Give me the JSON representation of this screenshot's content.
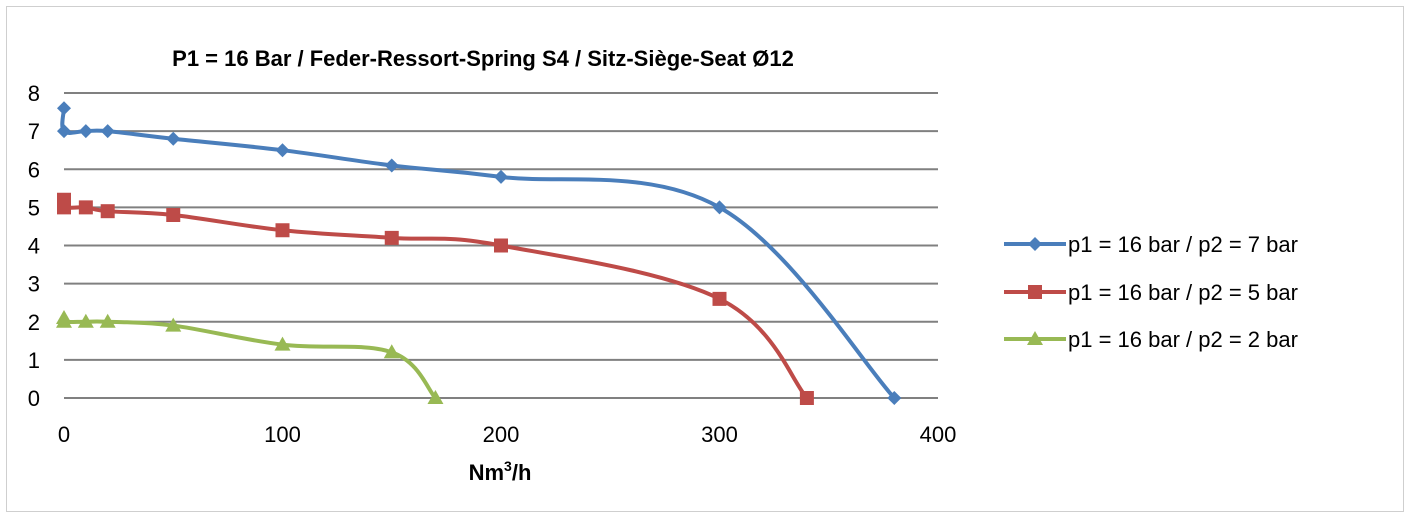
{
  "chart_data": {
    "type": "line",
    "title": "P1 = 16 Bar / Feder-Ressort-Spring S4 / Sitz-Siège-Seat Ø12",
    "xlabel_main": "Nm",
    "xlabel_sup": "3",
    "xlabel_tail": "/h",
    "ylabel": "",
    "xlim": [
      0,
      400
    ],
    "ylim": [
      0,
      8
    ],
    "xticks": [
      0,
      100,
      200,
      300,
      400
    ],
    "yticks": [
      0,
      1,
      2,
      3,
      4,
      5,
      6,
      7,
      8
    ],
    "grid": "horizontal",
    "legend_position": "right",
    "series": [
      {
        "name": "p1 = 16 bar / p2 = 7 bar",
        "color": "#4A7EBB",
        "marker": "diamond",
        "x": [
          0,
          0,
          10,
          20,
          50,
          100,
          150,
          200,
          300,
          380
        ],
        "y": [
          7.6,
          7.0,
          7.0,
          7.0,
          6.8,
          6.5,
          6.1,
          5.8,
          5.0,
          0
        ]
      },
      {
        "name": "p1 = 16 bar / p2 = 5 bar",
        "color": "#BE4B48",
        "marker": "square",
        "x": [
          0,
          0,
          10,
          20,
          50,
          100,
          150,
          200,
          300,
          340
        ],
        "y": [
          5.2,
          5.0,
          5.0,
          4.9,
          4.8,
          4.4,
          4.2,
          4.0,
          2.6,
          0
        ]
      },
      {
        "name": "p1 = 16 bar / p2 = 2 bar",
        "color": "#98B954",
        "marker": "triangle",
        "x": [
          0,
          0,
          10,
          20,
          50,
          100,
          150,
          170
        ],
        "y": [
          2.1,
          2.0,
          2.0,
          2.0,
          1.9,
          1.4,
          1.2,
          0
        ]
      }
    ]
  }
}
